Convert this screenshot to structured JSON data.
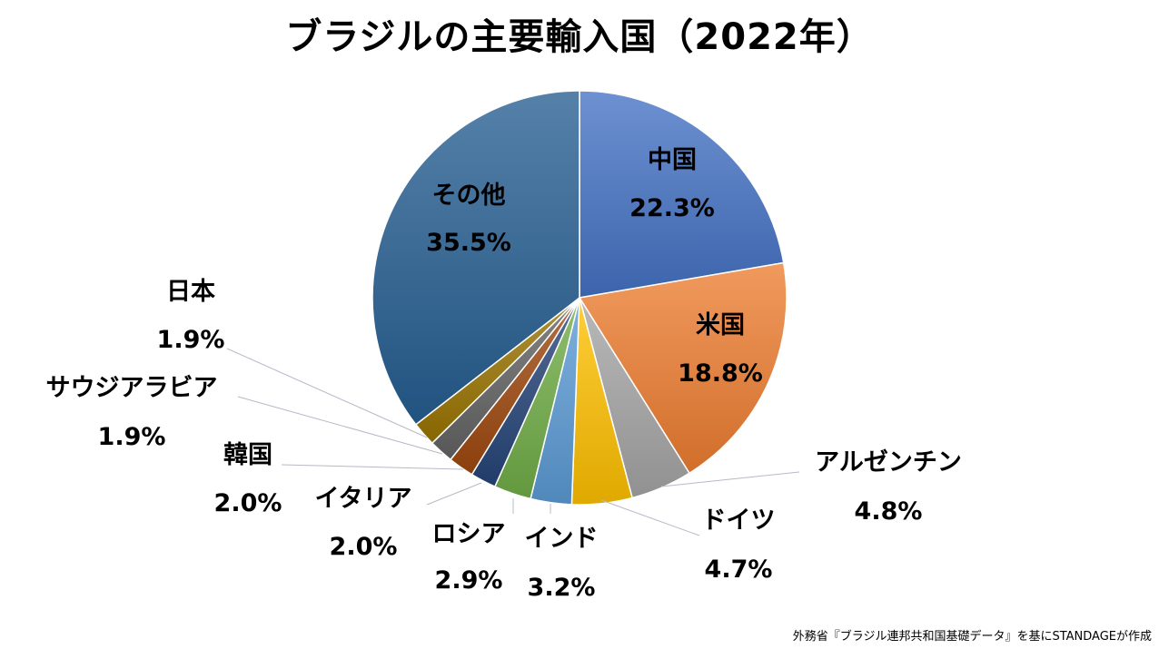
{
  "chart_data": {
    "type": "pie",
    "title": "ブラジルの主要輸入国（2022年）",
    "unit": "%",
    "start": "12 o'clock",
    "direction": "clockwise",
    "slices": [
      {
        "name": "中国",
        "value": 22.3,
        "label": "22.3%",
        "color": "#4472C4"
      },
      {
        "name": "米国",
        "value": 18.8,
        "label": "18.8%",
        "color": "#ED7D31"
      },
      {
        "name": "アルゼンチン",
        "value": 4.8,
        "label": "4.8%",
        "color": "#A5A5A5"
      },
      {
        "name": "ドイツ",
        "value": 4.7,
        "label": "4.7%",
        "color": "#FFC000"
      },
      {
        "name": "インド",
        "value": 3.2,
        "label": "3.2%",
        "color": "#5B9BD5"
      },
      {
        "name": "ロシア",
        "value": 2.9,
        "label": "2.9%",
        "color": "#70AD47"
      },
      {
        "name": "イタリア",
        "value": 2.0,
        "label": "2.0%",
        "color": "#264478"
      },
      {
        "name": "韓国",
        "value": 2.0,
        "label": "2.0%",
        "color": "#9E480E"
      },
      {
        "name": "サウジアラビア",
        "value": 1.9,
        "label": "1.9%",
        "color": "#636363"
      },
      {
        "name": "日本",
        "value": 1.9,
        "label": "1.9%",
        "color": "#997300"
      },
      {
        "name": "その他",
        "value": 35.5,
        "label": "35.5%",
        "color": "#255E91"
      }
    ]
  },
  "source": "外務省『ブラジル連邦共和国基礎データ』を基にSTANDAGEが作成"
}
